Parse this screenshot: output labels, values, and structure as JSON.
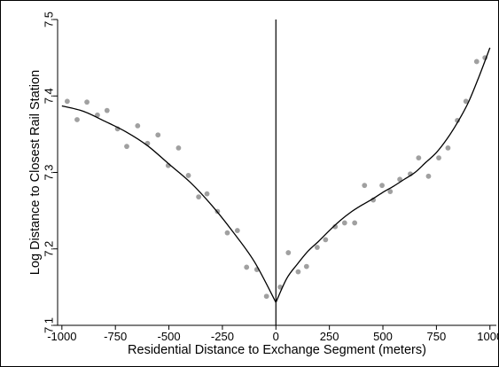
{
  "chart_data": {
    "type": "scatter",
    "xlabel": "Residential Distance to Exchange Segment (meters)",
    "ylabel": "Log Distance to Closest Rail Station",
    "xlim": [
      -1020,
      1030
    ],
    "ylim": [
      7.1,
      7.5
    ],
    "xticks": [
      -1000,
      -750,
      -500,
      -250,
      0,
      250,
      500,
      750,
      1000
    ],
    "xtick_labels": [
      "-1000",
      "-750",
      "-500",
      "-250",
      "0",
      "250",
      "500",
      "750",
      "1000"
    ],
    "yticks": [
      7.1,
      7.2,
      7.3,
      7.4,
      7.5
    ],
    "ytick_labels": [
      "7.1",
      "7.2",
      "7.3",
      "7.4",
      "7.5"
    ],
    "grid": false,
    "legend": "none",
    "cutoff_line_x": 0,
    "colors": {
      "points": "#a0a0a0",
      "fit": "#000000",
      "axes": "#000000",
      "frame": "#000000"
    },
    "series": [
      {
        "kind": "points",
        "x": [
          -975,
          -929,
          -883,
          -834,
          -789,
          -740,
          -697,
          -646,
          -600,
          -551,
          -503,
          -455,
          -409,
          -361,
          -322,
          -273,
          -227,
          -180,
          -137,
          -89,
          -44,
          20,
          58,
          104,
          143,
          193,
          232,
          277,
          321,
          368,
          414,
          455,
          496,
          534,
          579,
          628,
          667,
          713,
          761,
          804,
          848,
          888,
          938,
          977
        ],
        "y": [
          7.393,
          7.369,
          7.392,
          7.375,
          7.381,
          7.357,
          7.334,
          7.361,
          7.338,
          7.349,
          7.309,
          7.332,
          7.296,
          7.268,
          7.272,
          7.249,
          7.221,
          7.224,
          7.176,
          7.173,
          7.138,
          7.15,
          7.195,
          7.17,
          7.177,
          7.202,
          7.212,
          7.229,
          7.234,
          7.234,
          7.283,
          7.264,
          7.283,
          7.275,
          7.291,
          7.298,
          7.319,
          7.295,
          7.319,
          7.332,
          7.368,
          7.393,
          7.445,
          7.45
        ]
      },
      {
        "kind": "fit-left",
        "x": [
          -1000,
          -900,
          -800,
          -700,
          -600,
          -500,
          -400,
          -300,
          -200,
          -100,
          0
        ],
        "y": [
          7.387,
          7.38,
          7.367,
          7.353,
          7.335,
          7.311,
          7.287,
          7.257,
          7.222,
          7.183,
          7.13
        ]
      },
      {
        "kind": "fit-right",
        "x": [
          0,
          50,
          100,
          150,
          200,
          250,
          300,
          350,
          400,
          450,
          500,
          550,
          600,
          650,
          700,
          750,
          800,
          850,
          900,
          950,
          1000
        ],
        "y": [
          7.13,
          7.161,
          7.18,
          7.197,
          7.21,
          7.224,
          7.237,
          7.248,
          7.257,
          7.265,
          7.274,
          7.282,
          7.291,
          7.3,
          7.313,
          7.326,
          7.344,
          7.366,
          7.392,
          7.426,
          7.463
        ]
      }
    ]
  }
}
